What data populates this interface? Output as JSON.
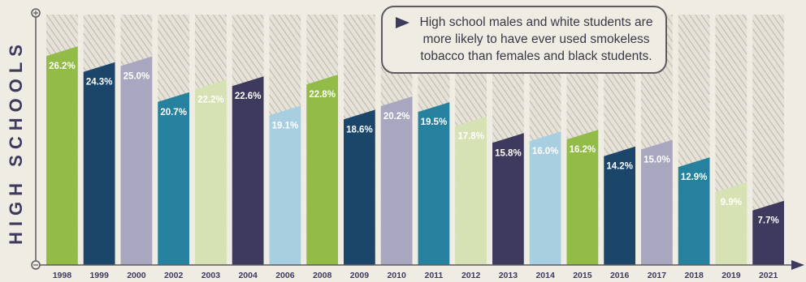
{
  "chart_data": {
    "type": "bar",
    "ylabel": "HIGH SCHOOLS",
    "categories": [
      "1998",
      "1999",
      "2000",
      "2002",
      "2003",
      "2004",
      "2006",
      "2008",
      "2009",
      "2010",
      "2011",
      "2012",
      "2013",
      "2014",
      "2015",
      "2016",
      "2017",
      "2018",
      "2019",
      "2021"
    ],
    "values": [
      26.2,
      24.3,
      25.0,
      20.7,
      22.2,
      22.6,
      19.1,
      22.8,
      18.6,
      20.2,
      19.5,
      17.8,
      15.8,
      16.0,
      16.2,
      14.2,
      15.0,
      12.9,
      9.9,
      7.7
    ],
    "value_labels": [
      "26.2%",
      "24.3%",
      "25.0%",
      "20.7%",
      "22.2%",
      "22.6%",
      "19.1%",
      "22.8%",
      "18.6%",
      "20.2%",
      "19.5%",
      "17.8%",
      "15.8%",
      "16.0%",
      "16.2%",
      "14.2%",
      "15.0%",
      "12.9%",
      "9.9%",
      "7.7%"
    ],
    "ylim": [
      0,
      30
    ],
    "bar_colors": [
      "#93bb48",
      "#1b4569",
      "#a9a7bf",
      "#25819e",
      "#d6e2b3",
      "#3e3a5e",
      "#a8cfe0",
      "#93bb48",
      "#1b4569",
      "#a9a7bf",
      "#25819e",
      "#d6e2b3",
      "#3e3a5e",
      "#a8cfe0",
      "#93bb48",
      "#1b4569",
      "#a9a7bf",
      "#25819e",
      "#d6e2b3",
      "#3e3a5e"
    ],
    "label_colors": [
      "#ffffff",
      "#ffffff",
      "#ffffff",
      "#ffffff",
      "#ffffff",
      "#ffffff",
      "#ffffff",
      "#ffffff",
      "#ffffff",
      "#ffffff",
      "#ffffff",
      "#ffffff",
      "#ffffff",
      "#ffffff",
      "#ffffff",
      "#ffffff",
      "#ffffff",
      "#ffffff",
      "#ffffff",
      "#ffffff"
    ],
    "axis_color": "#5d5a60",
    "hatch_color": "#bdbab0"
  },
  "callout": {
    "text": "High school males and white students are more likely to have ever used smokeless tobacco than females and black students."
  }
}
